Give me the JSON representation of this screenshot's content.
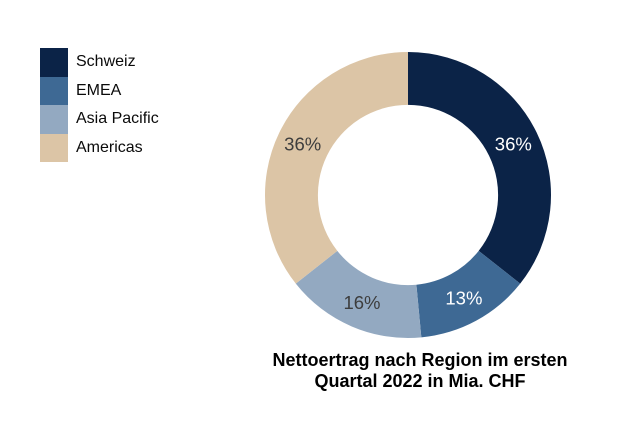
{
  "page": {
    "background_color": "#ffffff"
  },
  "legend": {
    "position": "top-left",
    "items": [
      {
        "label": "Schweiz",
        "color": "#0b2347"
      },
      {
        "label": "EMEA",
        "color": "#3e6994"
      },
      {
        "label": "Asia Pacific",
        "color": "#93a9c1"
      },
      {
        "label": "Americas",
        "color": "#dcc5a6"
      }
    ]
  },
  "chart_data": {
    "type": "pie",
    "subtype": "donut",
    "title": "Nettoertrag nach Region im ersten Quartal 2022 in Mia. CHF",
    "title_lines": [
      "Nettoertrag nach Region im ersten",
      "Quartal 2022 in Mia. CHF"
    ],
    "categories": [
      "Schweiz",
      "EMEA",
      "Asia Pacific",
      "Americas"
    ],
    "values": [
      36,
      13,
      16,
      36
    ],
    "labels": [
      "36%",
      "13%",
      "16%",
      "36%"
    ],
    "colors": [
      "#0b2347",
      "#3e6994",
      "#93a9c1",
      "#dcc5a6"
    ],
    "label_colors": [
      "#ffffff",
      "#ffffff",
      "#3d3d3d",
      "#3d3d3d"
    ],
    "start_angle_deg": 0,
    "direction": "clockwise",
    "donut_hole_ratio": 0.63,
    "legend_position": "top-left",
    "title_color": "#000000"
  }
}
